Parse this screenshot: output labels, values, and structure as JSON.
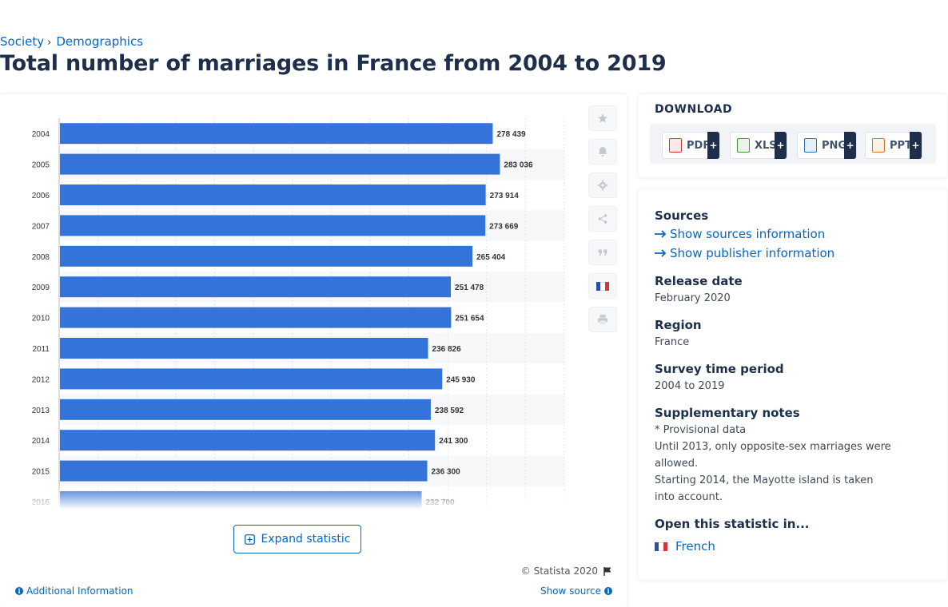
{
  "breadcrumb": {
    "items": [
      "Society",
      "Demographics"
    ],
    "separator": "›"
  },
  "page_title": "Total number of marriages in France from 2004 to 2019",
  "colors": {
    "bar": "#3474da",
    "accent": "#0666c4",
    "heading": "#1d2f4a"
  },
  "chart_data": {
    "type": "bar",
    "orientation": "horizontal",
    "categories": [
      "2004",
      "2005",
      "2006",
      "2007",
      "2008",
      "2009",
      "2010",
      "2011",
      "2012",
      "2013",
      "2014",
      "2015",
      "2016"
    ],
    "values": [
      278439,
      283036,
      273914,
      273669,
      265404,
      251478,
      251654,
      236826,
      245930,
      238592,
      241300,
      236300,
      232700
    ],
    "value_labels": [
      "278 439",
      "283 036",
      "273 914",
      "273 669",
      "265 404",
      "251 478",
      "251 654",
      "236 826",
      "245 930",
      "238 592",
      "241 300",
      "236 300",
      "232 700"
    ],
    "title": "",
    "xlabel": "",
    "ylabel": "",
    "xlim": [
      0,
      325000
    ],
    "grid": true,
    "legend": "none"
  },
  "toolbar": {
    "icons": [
      "star-icon",
      "bell-icon",
      "gear-icon",
      "share-icon",
      "quote-icon",
      "french-flag-icon",
      "print-icon"
    ]
  },
  "expand_label": "Expand statistic",
  "copyright": "© Statista 2020",
  "additional_info": "Additional Information",
  "show_source": "Show source",
  "download": {
    "title": "DOWNLOAD",
    "buttons": [
      {
        "label": "PDF",
        "color": "#d23a2b"
      },
      {
        "label": "XLS",
        "color": "#3f9b35"
      },
      {
        "label": "PNG",
        "color": "#2b6fc0"
      },
      {
        "label": "PPT",
        "color": "#e0732b"
      }
    ],
    "plus": "+"
  },
  "info": {
    "sources_heading": "Sources",
    "show_sources": "Show sources information",
    "show_publisher": "Show publisher information",
    "release_heading": "Release date",
    "release_value": "February 2020",
    "region_heading": "Region",
    "region_value": "France",
    "survey_heading": "Survey time period",
    "survey_value": "2004 to 2019",
    "notes_heading": "Supplementary notes",
    "notes": [
      "* Provisional data",
      "Until 2013, only opposite-sex marriages were allowed.",
      "Starting 2014, the Mayotte island is taken into account."
    ],
    "open_heading": "Open this statistic in...",
    "open_lang": "French"
  }
}
